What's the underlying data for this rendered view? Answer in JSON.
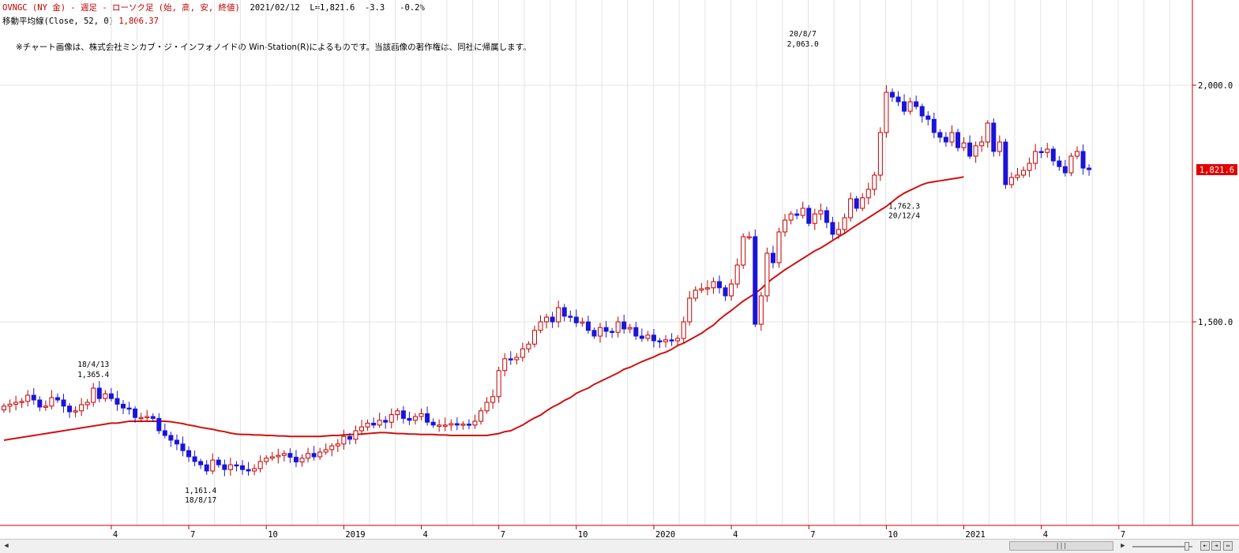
{
  "header": {
    "symbol_line": "OVNGC (NY 金) - 週足 - ローソク足 (始, 高, 安, 終値)",
    "date_line": "2021/02/12  L=1,821.6  -3.3   -0.2%",
    "ma_label": "移動平均線(Close, 52, 0)",
    "ma_value": "1,806.37"
  },
  "copyright": "※チャート画像は、株式会社ミンカブ・ジ・インフォノイドの Win-Station(R)によるものです。当該画像の著作権は、同社に帰属します。",
  "colors": {
    "up": "#c00000",
    "down": "#1a14d8",
    "ma": "#d01010",
    "grid": "#e4e4e4",
    "last_bg": "#e00000"
  },
  "chart_data": {
    "type": "candlestick",
    "y_ticks": [
      {
        "value": 1500,
        "label": "1,500.0"
      },
      {
        "value": 2000,
        "label": "2,000.0"
      }
    ],
    "last_price": {
      "value": 1821.6,
      "label": "1,821.6"
    },
    "x_ticks": [
      {
        "i": 18,
        "label": "4"
      },
      {
        "i": 31,
        "label": "7"
      },
      {
        "i": 44,
        "label": "10"
      },
      {
        "i": 57,
        "label": "2019"
      },
      {
        "i": 70,
        "label": "4"
      },
      {
        "i": 83,
        "label": "7"
      },
      {
        "i": 96,
        "label": "10"
      },
      {
        "i": 109,
        "label": "2020"
      },
      {
        "i": 122,
        "label": "4"
      },
      {
        "i": 135,
        "label": "7"
      },
      {
        "i": 148,
        "label": "10"
      },
      {
        "i": 161,
        "label": "2021"
      },
      {
        "i": 174,
        "label": "4"
      },
      {
        "i": 187,
        "label": "7"
      }
    ],
    "annotations": [
      {
        "i": 15,
        "value": 1365.4,
        "date": "18/4/13",
        "price": "1,365.4",
        "pos": "above"
      },
      {
        "i": 33,
        "value": 1161.4,
        "date": "18/8/17",
        "price": "1,161.4",
        "pos": "below"
      },
      {
        "i": 134,
        "value": 2063.0,
        "date": "20/8/7",
        "price": "2,063.0",
        "pos": "above"
      },
      {
        "i": 151,
        "value": 1762.3,
        "date": "20/12/4",
        "price": "1,762.3",
        "pos": "below"
      }
    ],
    "closes": [
      1322,
      1326,
      1330,
      1332,
      1345,
      1335,
      1320,
      1322,
      1340,
      1335,
      1322,
      1310,
      1312,
      1325,
      1330,
      1360,
      1338,
      1348,
      1338,
      1326,
      1318,
      1316,
      1298,
      1298,
      1300,
      1296,
      1270,
      1260,
      1250,
      1242,
      1228,
      1215,
      1205,
      1198,
      1185,
      1208,
      1198,
      1188,
      1198,
      1196,
      1188,
      1185,
      1190,
      1205,
      1212,
      1215,
      1218,
      1222,
      1214,
      1204,
      1212,
      1222,
      1215,
      1225,
      1230,
      1238,
      1242,
      1258,
      1252,
      1270,
      1278,
      1286,
      1282,
      1292,
      1288,
      1304,
      1312,
      1296,
      1292,
      1300,
      1306,
      1288,
      1282,
      1282,
      1282,
      1285,
      1282,
      1284,
      1282,
      1290,
      1312,
      1330,
      1342,
      1397,
      1422,
      1420,
      1425,
      1443,
      1453,
      1482,
      1500,
      1510,
      1500,
      1530,
      1512,
      1510,
      1498,
      1500,
      1482,
      1470,
      1488,
      1480,
      1478,
      1500,
      1485,
      1488,
      1470,
      1465,
      1472,
      1460,
      1458,
      1462,
      1460,
      1465,
      1500,
      1550,
      1567,
      1570,
      1572,
      1585,
      1572,
      1555,
      1580,
      1620,
      1680,
      1680,
      1495,
      1555,
      1645,
      1625,
      1690,
      1715,
      1728,
      1725,
      1740,
      1708,
      1728,
      1735,
      1710,
      1685,
      1695,
      1720,
      1760,
      1740,
      1762,
      1780,
      1810,
      1900,
      1985,
      1975,
      1965,
      1945,
      1965,
      1955,
      1935,
      1928,
      1900,
      1890,
      1880,
      1900,
      1868,
      1878,
      1850,
      1872,
      1880,
      1920,
      1860,
      1880,
      1790,
      1805,
      1810,
      1820,
      1835,
      1860,
      1858,
      1865,
      1840,
      1828,
      1815,
      1850,
      1860,
      1824.9,
      1821.6
    ],
    "ma_values": [
      1250,
      1252,
      1254,
      1256,
      1258,
      1260,
      1262,
      1264,
      1266,
      1268,
      1270,
      1272,
      1274,
      1276,
      1278,
      1280,
      1282,
      1284,
      1286,
      1286,
      1288,
      1290,
      1290,
      1290,
      1290,
      1290,
      1290,
      1290,
      1289,
      1287,
      1285,
      1282,
      1280,
      1277,
      1275,
      1273,
      1270,
      1268,
      1265,
      1263,
      1262,
      1262,
      1261,
      1261,
      1260,
      1260,
      1259,
      1259,
      1258,
      1258,
      1258,
      1258,
      1258,
      1258,
      1259,
      1260,
      1260,
      1261,
      1262,
      1262,
      1263,
      1264,
      1265,
      1266,
      1266,
      1265,
      1264,
      1264,
      1263,
      1263,
      1262,
      1262,
      1262,
      1261,
      1261,
      1260,
      1260,
      1260,
      1260,
      1260,
      1260,
      1260,
      1262,
      1264,
      1268,
      1270,
      1276,
      1282,
      1290,
      1297,
      1303,
      1312,
      1320,
      1326,
      1334,
      1340,
      1349,
      1355,
      1360,
      1368,
      1374,
      1380,
      1386,
      1392,
      1400,
      1404,
      1410,
      1416,
      1421,
      1426,
      1432,
      1436,
      1442,
      1450,
      1455,
      1462,
      1469,
      1476,
      1485,
      1493,
      1505,
      1515,
      1524,
      1534,
      1544,
      1552,
      1560,
      1570,
      1582,
      1592,
      1601,
      1610,
      1618,
      1626,
      1634,
      1642,
      1650,
      1656,
      1664,
      1672,
      1680,
      1687,
      1696,
      1704,
      1712,
      1720,
      1728,
      1736,
      1744,
      1754,
      1764,
      1772,
      1778,
      1784,
      1790,
      1794,
      1796,
      1798,
      1800,
      1802,
      1804,
      1806.37
    ]
  }
}
